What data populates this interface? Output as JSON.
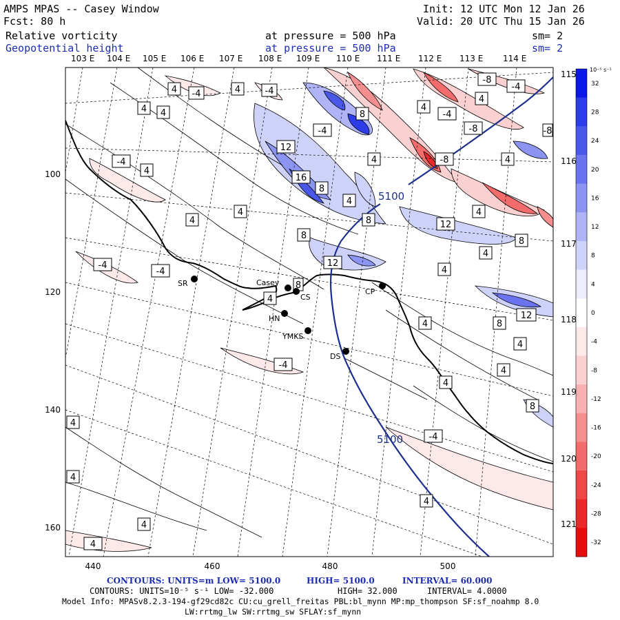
{
  "header": {
    "model": "AMPS MPAS -- Casey Window",
    "init": "Init: 12 UTC Mon 12 Jan 26",
    "fcst": "Fcst:   80 h",
    "valid": "Valid: 20 UTC Thu 15 Jan 26",
    "field1_name": "Relative vorticity",
    "field1_level": "at pressure =  500 hPa",
    "field1_sm": "sm= 2",
    "field2_name": "Geopotential height",
    "field2_level": "at pressure =  500 hPa",
    "field2_sm": "sm= 2"
  },
  "top_longitudes": [
    "103 E",
    "104 E",
    "105 E",
    "106 E",
    "107 E",
    "108 E",
    "109 E",
    "110 E",
    "111 E",
    "112 E",
    "113 E",
    "114 E"
  ],
  "right_longitudes": [
    "115 E",
    "116 E",
    "117 E",
    "118 E",
    "119 E",
    "120 E",
    "121 E"
  ],
  "x_ticks": [
    "440",
    "460",
    "480",
    "500"
  ],
  "y_ticks": [
    "100",
    "120",
    "140",
    "160"
  ],
  "colorbar": {
    "units": "10⁻⁵ s⁻¹",
    "labels": [
      "32",
      "28",
      "24",
      "20",
      "16",
      "12",
      "8",
      "4",
      "0",
      "-4",
      "-8",
      "-12",
      "-16",
      "-20",
      "-24",
      "-28",
      "-32"
    ],
    "colors": [
      "#0a18e8",
      "#2c3ce8",
      "#4a58ea",
      "#6a74ee",
      "#8c94f1",
      "#aeb4f5",
      "#ced2f9",
      "#eceefd",
      "#ffffff",
      "#fde9e9",
      "#fbd0d0",
      "#f8b0b0",
      "#f58e8e",
      "#f26c6c",
      "#ee4848",
      "#ea2a2a",
      "#e50d0d"
    ]
  },
  "stations": [
    {
      "name": "SR"
    },
    {
      "name": "Casey"
    },
    {
      "name": "CS"
    },
    {
      "name": "HN"
    },
    {
      "name": "YMKS"
    },
    {
      "name": "DS"
    },
    {
      "name": "CP"
    }
  ],
  "height_contour_labels": [
    "5100",
    "5100"
  ],
  "vorticity_labels": [
    "4",
    "-4",
    "4",
    "-4",
    "4",
    "4",
    "-4",
    "8",
    "-4",
    "12",
    "-4",
    "4",
    "16",
    "8",
    "4",
    "4",
    "8",
    "4",
    "8",
    "12",
    "-4",
    "-4",
    "12",
    "4",
    "8",
    "4",
    "4",
    "-8",
    "-4",
    "4",
    "-8",
    "-8",
    "-8",
    "4",
    "4",
    "4",
    "4",
    "8",
    "12",
    "4",
    "8",
    "4",
    "4",
    "8",
    "4",
    "4",
    "-4",
    "4",
    "4",
    "4",
    "-4"
  ],
  "footer": {
    "line1_label": "CONTOURS:  UNITS=m  LOW=  5100.0",
    "line1_high": "HIGH=  5100.0",
    "line1_interval": "INTERVAL=   60.000",
    "line2_label": "CONTOURS:  UNITS=10⁻⁵ s⁻¹   LOW= -32.000",
    "line2_high": "HIGH=  32.000",
    "line2_interval": "INTERVAL=   4.0000",
    "line3": "Model Info: MPASv8.2.3-194-gf29cd82c CU:cu_grell_freitas PBL:bl_mynn MP:mp_thompson SF:sf_noahmp 8.0",
    "line4": "LW:rrtmg_lw SW:rrtmg_sw SFLAY:sf_mynn"
  }
}
